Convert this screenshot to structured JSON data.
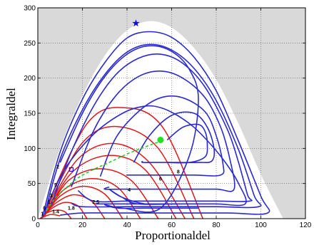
{
  "chart_data": {
    "type": "line",
    "xlabel": "Proportionaldel",
    "ylabel": "Integraldel",
    "xlim": [
      0,
      120
    ],
    "ylim": [
      0,
      300
    ],
    "xticks": [
      0,
      20,
      40,
      60,
      80,
      100,
      120
    ],
    "yticks": [
      0,
      50,
      100,
      150,
      200,
      250,
      300
    ],
    "grid": "dotted",
    "colors": {
      "background_region": "#d9d9d9",
      "feasible_region": "#ffffff",
      "blue_curves": "#2a2ad0",
      "red_curves": "#e01818",
      "green_curve": "#22cc22"
    },
    "feasible_boundary": [
      [
        0,
        0
      ],
      [
        10,
        100
      ],
      [
        20,
        175
      ],
      [
        30,
        232
      ],
      [
        40,
        268
      ],
      [
        50,
        281
      ],
      [
        60,
        272
      ],
      [
        70,
        243
      ],
      [
        80,
        198
      ],
      [
        90,
        135
      ],
      [
        100,
        63
      ],
      [
        110,
        0
      ]
    ],
    "blue_curves": [
      {
        "x": [
          3,
          12,
          25,
          38,
          48,
          55,
          62,
          70,
          78,
          85,
          90,
          93,
          80,
          65,
          45,
          38,
          32,
          38,
          48,
          58,
          66,
          72,
          70,
          60,
          45,
          35,
          30,
          26,
          30
        ],
        "y": [
          10,
          70,
          120,
          150,
          160,
          158,
          148,
          130,
          104,
          76,
          50,
          21,
          21,
          21,
          21,
          30,
          42,
          30,
          21,
          21,
          21,
          21,
          21,
          21,
          21,
          21,
          21,
          21,
          21
        ]
      },
      {
        "x": [
          10,
          20,
          30,
          40,
          50,
          60,
          68,
          72,
          68,
          55,
          38,
          30,
          36,
          48,
          58,
          66,
          72
        ],
        "y": [
          80,
          150,
          202,
          234,
          246,
          238,
          212,
          170,
          90,
          15,
          15,
          20,
          15,
          15,
          15,
          15,
          15
        ]
      },
      {
        "x": [
          2,
          10,
          20,
          30,
          40,
          50,
          60,
          70,
          80,
          90,
          100,
          103,
          85,
          60,
          40,
          20,
          10
        ],
        "y": [
          2,
          95,
          170,
          222,
          257,
          266,
          258,
          230,
          182,
          110,
          32,
          8,
          8,
          8,
          8,
          8,
          5
        ]
      },
      {
        "x": [
          3,
          10,
          20,
          30,
          40,
          50,
          60,
          70,
          80,
          90,
          97,
          99,
          80,
          60,
          40,
          20,
          15
        ],
        "y": [
          6,
          85,
          155,
          205,
          237,
          248,
          240,
          214,
          168,
          98,
          33,
          17,
          17,
          17,
          17,
          17,
          22
        ]
      },
      {
        "x": [
          6,
          15,
          25,
          35,
          45,
          55,
          65,
          75,
          85,
          90,
          94,
          95,
          80,
          60,
          40,
          25,
          18
        ],
        "y": [
          20,
          95,
          160,
          205,
          228,
          234,
          221,
          187,
          127,
          80,
          34,
          25,
          25,
          25,
          25,
          25,
          40
        ]
      },
      {
        "x": [
          15,
          25,
          35,
          45,
          55,
          65,
          75,
          82,
          86,
          88,
          80,
          65,
          50,
          38,
          30,
          32
        ],
        "y": [
          45,
          125,
          175,
          202,
          210,
          200,
          172,
          130,
          86,
          42,
          42,
          42,
          42,
          42,
          42,
          45
        ]
      },
      {
        "x": [
          28,
          35,
          45,
          55,
          65,
          75,
          80,
          83,
          82,
          70,
          55,
          45,
          40,
          41
        ],
        "y": [
          60,
          115,
          152,
          172,
          172,
          152,
          118,
          78,
          62,
          62,
          62,
          62,
          62,
          62
        ]
      },
      {
        "x": [
          43,
          50,
          60,
          70,
          76,
          79,
          78,
          72,
          62,
          52,
          47,
          47
        ],
        "y": [
          80,
          118,
          147,
          150,
          130,
          100,
          82,
          80,
          80,
          80,
          80,
          82
        ]
      },
      {
        "x": [
          58,
          65,
          72,
          75,
          76,
          75,
          68,
          58
        ],
        "y": [
          112,
          130,
          134,
          124,
          105,
          88,
          80,
          80
        ]
      }
    ],
    "red_curves": [
      {
        "x": [
          1,
          3,
          6,
          10
        ],
        "y": [
          0,
          3,
          6,
          4
        ]
      },
      {
        "x": [
          1,
          4,
          8,
          12,
          15
        ],
        "y": [
          0,
          8,
          12,
          10,
          0
        ]
      },
      {
        "x": [
          2,
          6,
          12,
          18,
          22
        ],
        "y": [
          2,
          14,
          23,
          18,
          0
        ]
      },
      {
        "x": [
          2,
          8,
          16,
          24,
          30
        ],
        "y": [
          2,
          22,
          34,
          25,
          0
        ]
      },
      {
        "x": [
          3,
          10,
          20,
          30,
          38
        ],
        "y": [
          4,
          32,
          46,
          35,
          0
        ]
      },
      {
        "x": [
          3,
          12,
          24,
          36,
          46
        ],
        "y": [
          6,
          42,
          57,
          44,
          0
        ]
      },
      {
        "x": [
          4,
          14,
          28,
          42,
          54
        ],
        "y": [
          8,
          55,
          71,
          54,
          0
        ]
      },
      {
        "x": [
          4,
          16,
          32,
          48,
          62
        ],
        "y": [
          10,
          68,
          90,
          70,
          0
        ]
      },
      {
        "x": [
          4,
          18,
          34,
          50,
          66
        ],
        "y": [
          12,
          85,
          107,
          80,
          0
        ]
      },
      {
        "x": [
          4,
          20,
          36,
          54,
          70
        ],
        "y": [
          15,
          108,
          131,
          100,
          0
        ]
      },
      {
        "x": [
          4,
          22,
          38,
          56,
          74
        ],
        "y": [
          18,
          135,
          158,
          130,
          0
        ]
      }
    ],
    "green_curve": {
      "x": [
        4,
        8,
        12,
        18,
        25,
        32,
        40,
        48,
        55
      ],
      "y": [
        12,
        30,
        42,
        58,
        70,
        80,
        92,
        102,
        110
      ]
    },
    "markers": [
      {
        "type": "star",
        "x": 44,
        "y": 278,
        "color": "#1010e0"
      },
      {
        "type": "square",
        "x": 15,
        "y": 70,
        "color": "#1010e0"
      },
      {
        "type": "dot",
        "x": 55,
        "y": 112,
        "color": "#22e022"
      }
    ],
    "labels": [
      {
        "text": "8",
        "x": 63,
        "y": 67
      },
      {
        "text": "6",
        "x": 55,
        "y": 57
      },
      {
        "text": "4",
        "x": 41,
        "y": 41
      },
      {
        "text": "2.5",
        "x": 26,
        "y": 24
      },
      {
        "text": "1.8",
        "x": 15,
        "y": 15
      },
      {
        "text": "1.4",
        "x": 8,
        "y": 10
      },
      {
        "text": "2",
        "x": 9,
        "y": 74
      },
      {
        "text": "5",
        "x": 8,
        "y": 48
      },
      {
        "text": "3",
        "x": 6,
        "y": 33
      },
      {
        "text": "1",
        "x": 5,
        "y": 24
      },
      {
        "text": "0",
        "x": 3,
        "y": 15
      },
      {
        "text": "1",
        "x": 2,
        "y": 7
      }
    ]
  }
}
